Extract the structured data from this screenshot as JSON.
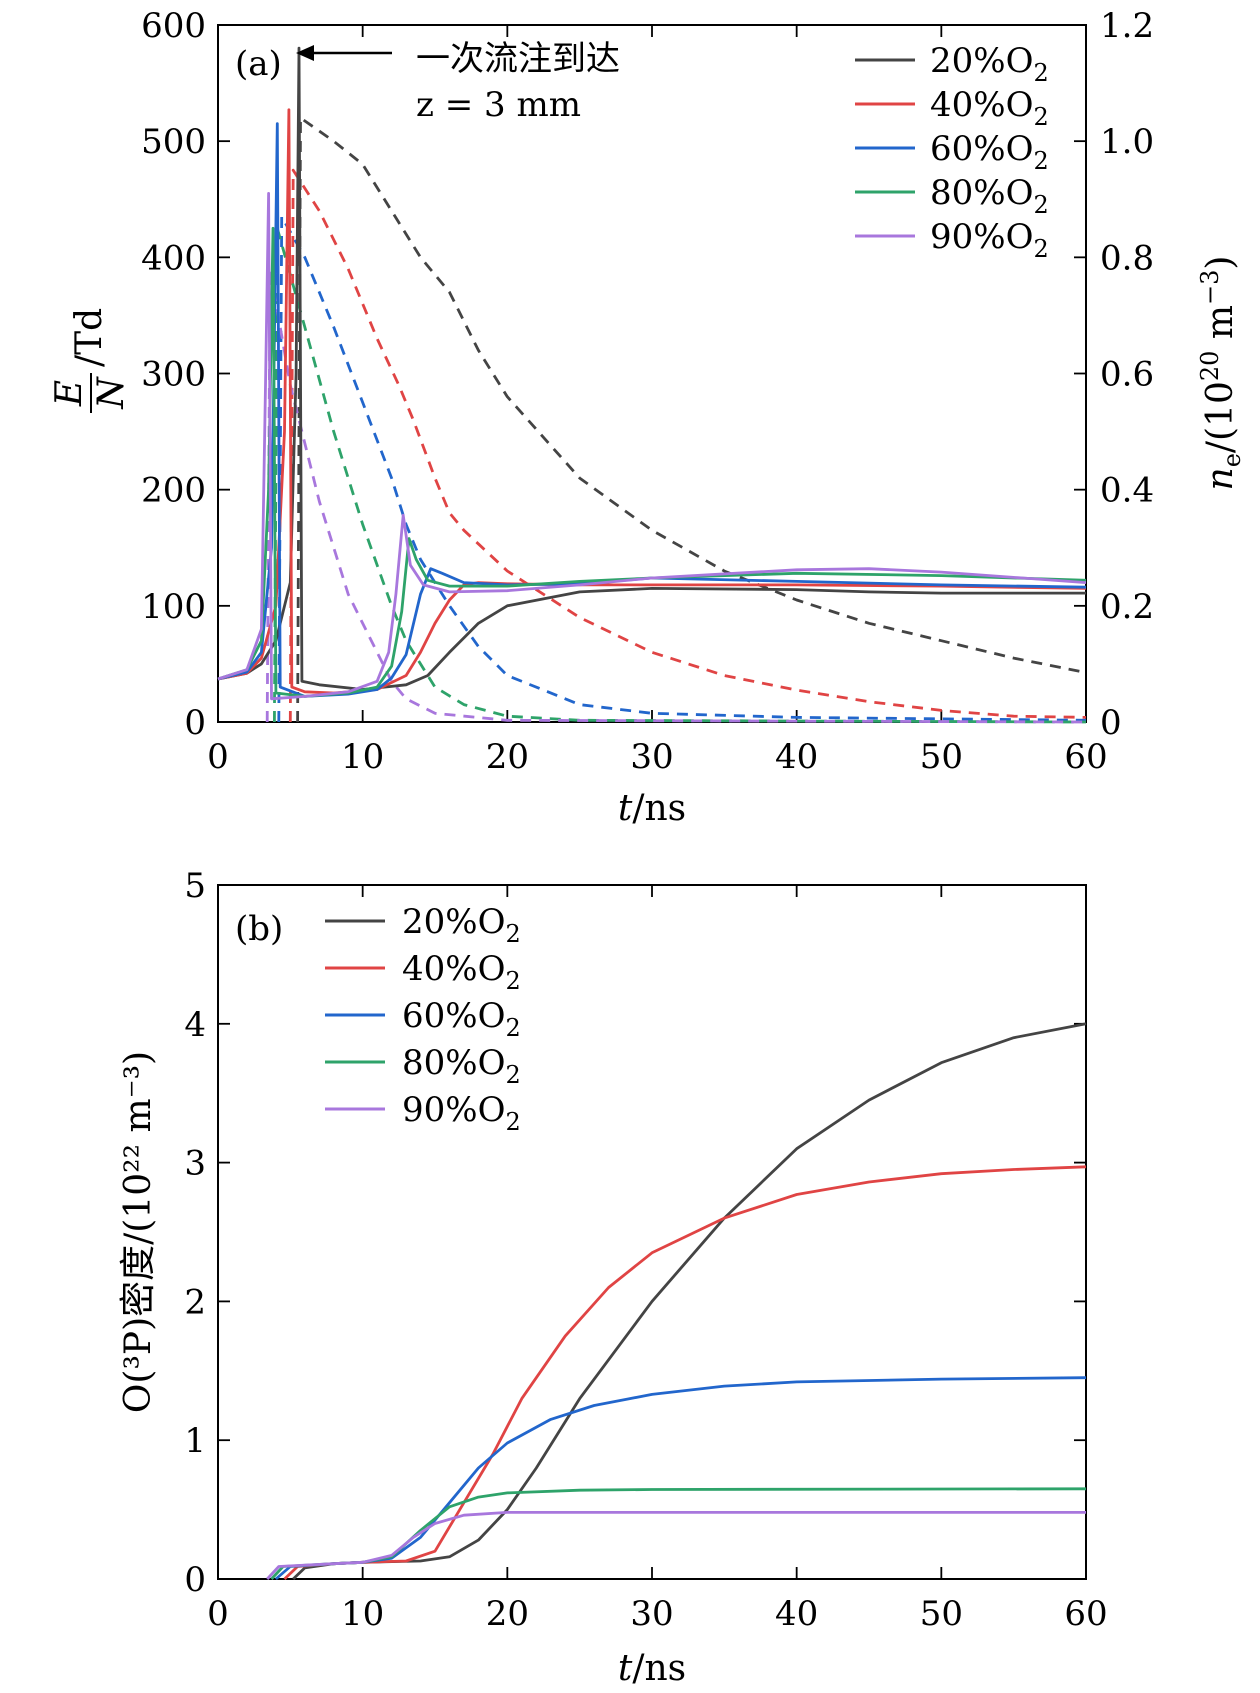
{
  "colors": {
    "20": "#444444",
    "40": "#e04444",
    "60": "#2266cc",
    "80": "#2ea36a",
    "90": "#a877dd"
  },
  "chart_data": [
    {
      "panel_label": "(a)",
      "type": "line",
      "xlabel": "t/ns",
      "ylabel_left": "E/N /Td",
      "ylabel_right": "n_e/(10^20 m^-3)",
      "xlim": [
        0,
        60
      ],
      "ylim_left": [
        0,
        600
      ],
      "ylim_right": [
        0,
        1.2
      ],
      "xticks": [
        "0",
        "10",
        "20",
        "30",
        "40",
        "50",
        "60"
      ],
      "yticks_left": [
        "0",
        "100",
        "200",
        "300",
        "400",
        "500",
        "600"
      ],
      "yticks_right": [
        "0",
        "0.2",
        "0.4",
        "0.6",
        "0.8",
        "1.0",
        "1.2"
      ],
      "annotation": {
        "text": "一次流注到达",
        "z_text": "z = 3 mm",
        "arrow_x": 5.7,
        "arrow_y": 580
      },
      "legend_position": "top-right",
      "series": [
        {
          "name": "20%O2",
          "key": "20",
          "EN": [
            [
              0,
              37
            ],
            [
              2,
              42
            ],
            [
              3,
              50
            ],
            [
              4,
              70
            ],
            [
              5,
              120
            ],
            [
              5.4,
              300
            ],
            [
              5.6,
              580
            ],
            [
              5.8,
              35
            ],
            [
              7,
              32
            ],
            [
              10,
              28
            ],
            [
              13,
              32
            ],
            [
              14.5,
              40
            ],
            [
              16,
              60
            ],
            [
              18,
              85
            ],
            [
              20,
              100
            ],
            [
              25,
              112
            ],
            [
              30,
              115
            ],
            [
              40,
              114
            ],
            [
              45,
              112
            ],
            [
              50,
              111
            ],
            [
              60,
              111
            ]
          ],
          "ne": [
            [
              5.5,
              0
            ],
            [
              5.7,
              1.04
            ],
            [
              8,
              1.0
            ],
            [
              10,
              0.96
            ],
            [
              12,
              0.88
            ],
            [
              14,
              0.8
            ],
            [
              16,
              0.74
            ],
            [
              18,
              0.64
            ],
            [
              20,
              0.56
            ],
            [
              25,
              0.42
            ],
            [
              30,
              0.33
            ],
            [
              35,
              0.26
            ],
            [
              40,
              0.21
            ],
            [
              45,
              0.17
            ],
            [
              50,
              0.14
            ],
            [
              55,
              0.11
            ],
            [
              60,
              0.085
            ]
          ]
        },
        {
          "name": "40%O2",
          "key": "40",
          "EN": [
            [
              0,
              37
            ],
            [
              2,
              42
            ],
            [
              3,
              55
            ],
            [
              4,
              100
            ],
            [
              4.6,
              250
            ],
            [
              4.9,
              527
            ],
            [
              5.1,
              30
            ],
            [
              6,
              26
            ],
            [
              8,
              25
            ],
            [
              11,
              28
            ],
            [
              13,
              40
            ],
            [
              14,
              60
            ],
            [
              15,
              85
            ],
            [
              16,
              105
            ],
            [
              17,
              118
            ],
            [
              18,
              120
            ],
            [
              20,
              119
            ],
            [
              25,
              118
            ],
            [
              30,
              118
            ],
            [
              40,
              118
            ],
            [
              50,
              117
            ],
            [
              60,
              115
            ]
          ],
          "ne": [
            [
              5.0,
              0
            ],
            [
              5.2,
              0.95
            ],
            [
              7,
              0.88
            ],
            [
              9,
              0.78
            ],
            [
              11,
              0.66
            ],
            [
              12.5,
              0.58
            ],
            [
              13.5,
              0.52
            ],
            [
              15,
              0.42
            ],
            [
              16,
              0.36
            ],
            [
              17,
              0.33
            ],
            [
              20,
              0.26
            ],
            [
              25,
              0.18
            ],
            [
              30,
              0.12
            ],
            [
              35,
              0.08
            ],
            [
              40,
              0.055
            ],
            [
              45,
              0.035
            ],
            [
              50,
              0.02
            ],
            [
              55,
              0.01
            ],
            [
              60,
              0.008
            ]
          ]
        },
        {
          "name": "60%O2",
          "key": "60",
          "EN": [
            [
              0,
              37
            ],
            [
              2,
              43
            ],
            [
              3,
              60
            ],
            [
              3.7,
              150
            ],
            [
              4.1,
              515
            ],
            [
              4.3,
              30
            ],
            [
              6,
              22
            ],
            [
              9,
              24
            ],
            [
              11,
              28
            ],
            [
              12,
              38
            ],
            [
              13,
              58
            ],
            [
              14,
              110
            ],
            [
              14.7,
              132
            ],
            [
              15.5,
              128
            ],
            [
              17,
              120
            ],
            [
              20,
              118
            ],
            [
              25,
              119
            ],
            [
              30,
              124
            ],
            [
              40,
              121
            ],
            [
              50,
              118
            ],
            [
              60,
              116
            ]
          ],
          "ne": [
            [
              4.2,
              0
            ],
            [
              4.4,
              0.87
            ],
            [
              6,
              0.8
            ],
            [
              8,
              0.68
            ],
            [
              10,
              0.55
            ],
            [
              12,
              0.42
            ],
            [
              13,
              0.34
            ],
            [
              14,
              0.28
            ],
            [
              15,
              0.24
            ],
            [
              16,
              0.2
            ],
            [
              18,
              0.13
            ],
            [
              20,
              0.08
            ],
            [
              25,
              0.03
            ],
            [
              30,
              0.015
            ],
            [
              40,
              0.008
            ],
            [
              60,
              0.003
            ]
          ]
        },
        {
          "name": "80%O2",
          "key": "80",
          "EN": [
            [
              0,
              37
            ],
            [
              2,
              45
            ],
            [
              3,
              70
            ],
            [
              3.5,
              200
            ],
            [
              3.8,
              425
            ],
            [
              4.0,
              25
            ],
            [
              6,
              22
            ],
            [
              9,
              25
            ],
            [
              11,
              30
            ],
            [
              12,
              48
            ],
            [
              12.7,
              95
            ],
            [
              13.2,
              158
            ],
            [
              13.7,
              140
            ],
            [
              14.5,
              122
            ],
            [
              16,
              117
            ],
            [
              20,
              117
            ],
            [
              25,
              121
            ],
            [
              30,
              124
            ],
            [
              40,
              128
            ],
            [
              50,
              126
            ],
            [
              60,
              122
            ]
          ],
          "ne": [
            [
              3.9,
              0
            ],
            [
              4.1,
              0.85
            ],
            [
              6,
              0.68
            ],
            [
              8,
              0.5
            ],
            [
              10,
              0.34
            ],
            [
              12,
              0.2
            ],
            [
              13,
              0.14
            ],
            [
              14,
              0.1
            ],
            [
              15,
              0.06
            ],
            [
              17,
              0.03
            ],
            [
              20,
              0.01
            ],
            [
              25,
              0.003
            ],
            [
              60,
              0
            ]
          ]
        },
        {
          "name": "90%O2",
          "key": "90",
          "EN": [
            [
              0,
              37
            ],
            [
              2,
              45
            ],
            [
              3,
              80
            ],
            [
              3.3,
              300
            ],
            [
              3.5,
              455
            ],
            [
              3.7,
              20
            ],
            [
              6,
              22
            ],
            [
              9,
              26
            ],
            [
              11,
              35
            ],
            [
              11.8,
              60
            ],
            [
              12.3,
              110
            ],
            [
              12.8,
              178
            ],
            [
              13.3,
              135
            ],
            [
              14.2,
              118
            ],
            [
              16,
              112
            ],
            [
              20,
              113
            ],
            [
              25,
              118
            ],
            [
              30,
              124
            ],
            [
              40,
              131
            ],
            [
              45,
              132
            ],
            [
              50,
              129
            ],
            [
              60,
              120
            ]
          ],
          "ne": [
            [
              3.4,
              0
            ],
            [
              3.6,
              0.78
            ],
            [
              5,
              0.58
            ],
            [
              7,
              0.38
            ],
            [
              9,
              0.22
            ],
            [
              11,
              0.12
            ],
            [
              12,
              0.07
            ],
            [
              13,
              0.04
            ],
            [
              15,
              0.015
            ],
            [
              20,
              0.003
            ],
            [
              60,
              0
            ]
          ]
        }
      ]
    },
    {
      "panel_label": "(b)",
      "type": "line",
      "xlabel": "t/ns",
      "ylabel": "O(³P)密度/(10²² m⁻³)",
      "xlim": [
        0,
        60
      ],
      "ylim": [
        0,
        5
      ],
      "xticks": [
        "0",
        "10",
        "20",
        "30",
        "40",
        "50",
        "60"
      ],
      "yticks": [
        "0",
        "1",
        "2",
        "3",
        "4",
        "5"
      ],
      "legend_position": "top-left",
      "series": [
        {
          "name": "20%O2",
          "key": "20",
          "values": [
            [
              5.2,
              0
            ],
            [
              6,
              0.08
            ],
            [
              8,
              0.11
            ],
            [
              10,
              0.12
            ],
            [
              14,
              0.13
            ],
            [
              16,
              0.16
            ],
            [
              18,
              0.28
            ],
            [
              20,
              0.5
            ],
            [
              22,
              0.8
            ],
            [
              25,
              1.3
            ],
            [
              30,
              2.0
            ],
            [
              35,
              2.6
            ],
            [
              40,
              3.1
            ],
            [
              45,
              3.45
            ],
            [
              50,
              3.72
            ],
            [
              55,
              3.9
            ],
            [
              60,
              4.0
            ]
          ]
        },
        {
          "name": "40%O2",
          "key": "40",
          "values": [
            [
              4.6,
              0
            ],
            [
              5.5,
              0.09
            ],
            [
              8,
              0.11
            ],
            [
              10,
              0.12
            ],
            [
              13,
              0.13
            ],
            [
              15,
              0.2
            ],
            [
              17,
              0.55
            ],
            [
              19,
              0.9
            ],
            [
              21,
              1.3
            ],
            [
              24,
              1.75
            ],
            [
              27,
              2.1
            ],
            [
              30,
              2.35
            ],
            [
              35,
              2.6
            ],
            [
              40,
              2.77
            ],
            [
              45,
              2.86
            ],
            [
              50,
              2.92
            ],
            [
              55,
              2.95
            ],
            [
              60,
              2.97
            ]
          ]
        },
        {
          "name": "60%O2",
          "key": "60",
          "values": [
            [
              4.0,
              0
            ],
            [
              5,
              0.09
            ],
            [
              8,
              0.11
            ],
            [
              10,
              0.12
            ],
            [
              12,
              0.15
            ],
            [
              14,
              0.3
            ],
            [
              16,
              0.55
            ],
            [
              18,
              0.8
            ],
            [
              20,
              0.98
            ],
            [
              23,
              1.15
            ],
            [
              26,
              1.25
            ],
            [
              30,
              1.33
            ],
            [
              35,
              1.39
            ],
            [
              40,
              1.42
            ],
            [
              50,
              1.44
            ],
            [
              60,
              1.45
            ]
          ]
        },
        {
          "name": "80%O2",
          "key": "80",
          "values": [
            [
              3.7,
              0
            ],
            [
              4.5,
              0.09
            ],
            [
              8,
              0.11
            ],
            [
              10,
              0.12
            ],
            [
              12,
              0.16
            ],
            [
              14,
              0.35
            ],
            [
              16,
              0.52
            ],
            [
              18,
              0.59
            ],
            [
              20,
              0.62
            ],
            [
              25,
              0.64
            ],
            [
              30,
              0.645
            ],
            [
              60,
              0.65
            ]
          ]
        },
        {
          "name": "90%O2",
          "key": "90",
          "values": [
            [
              3.4,
              0
            ],
            [
              4.2,
              0.09
            ],
            [
              8,
              0.11
            ],
            [
              10,
              0.12
            ],
            [
              12,
              0.17
            ],
            [
              13.5,
              0.3
            ],
            [
              15,
              0.4
            ],
            [
              17,
              0.46
            ],
            [
              20,
              0.48
            ],
            [
              30,
              0.48
            ],
            [
              60,
              0.48
            ]
          ]
        }
      ]
    }
  ]
}
